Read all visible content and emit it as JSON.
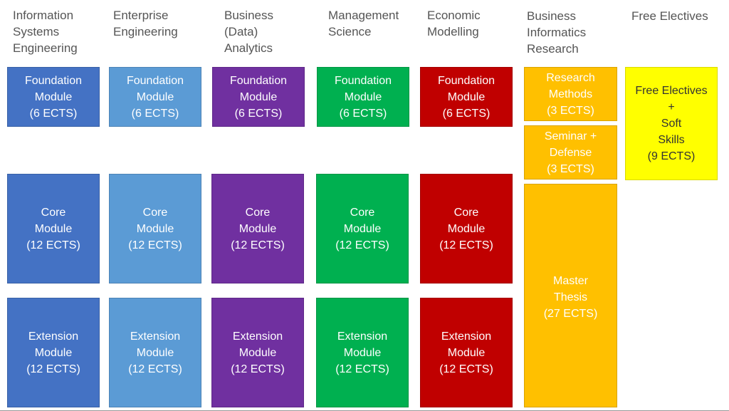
{
  "headers": {
    "ise": "Information\nSystems\nEngineering",
    "ee": "Enterprise\nEngineering",
    "bda": "Business\n(Data)\nAnalytics",
    "ms": "Management\nScience",
    "em": "Economic\nModelling",
    "bir": "Business\nInformatics\nResearch",
    "fe": "Free Electives"
  },
  "modules": {
    "foundation": "Foundation\nModule\n(6 ECTS)",
    "core": "Core\nModule\n(12 ECTS)",
    "extension": "Extension\nModule\n(12 ECTS)"
  },
  "research": {
    "methods": "Research\nMethods\n(3 ECTS)",
    "seminar": "Seminar +\nDefense\n(3 ECTS)",
    "thesis": "Master\nThesis\n(27 ECTS)"
  },
  "free": {
    "box": "Free Electives\n+\nSoft\nSkills\n(9 ECTS)"
  },
  "colors": {
    "ise": "#4472c4",
    "ee": "#5b9bd5",
    "bda": "#7030a0",
    "ms": "#00b050",
    "em": "#c00000",
    "research": "#ffc000",
    "free": "#ffff00"
  }
}
